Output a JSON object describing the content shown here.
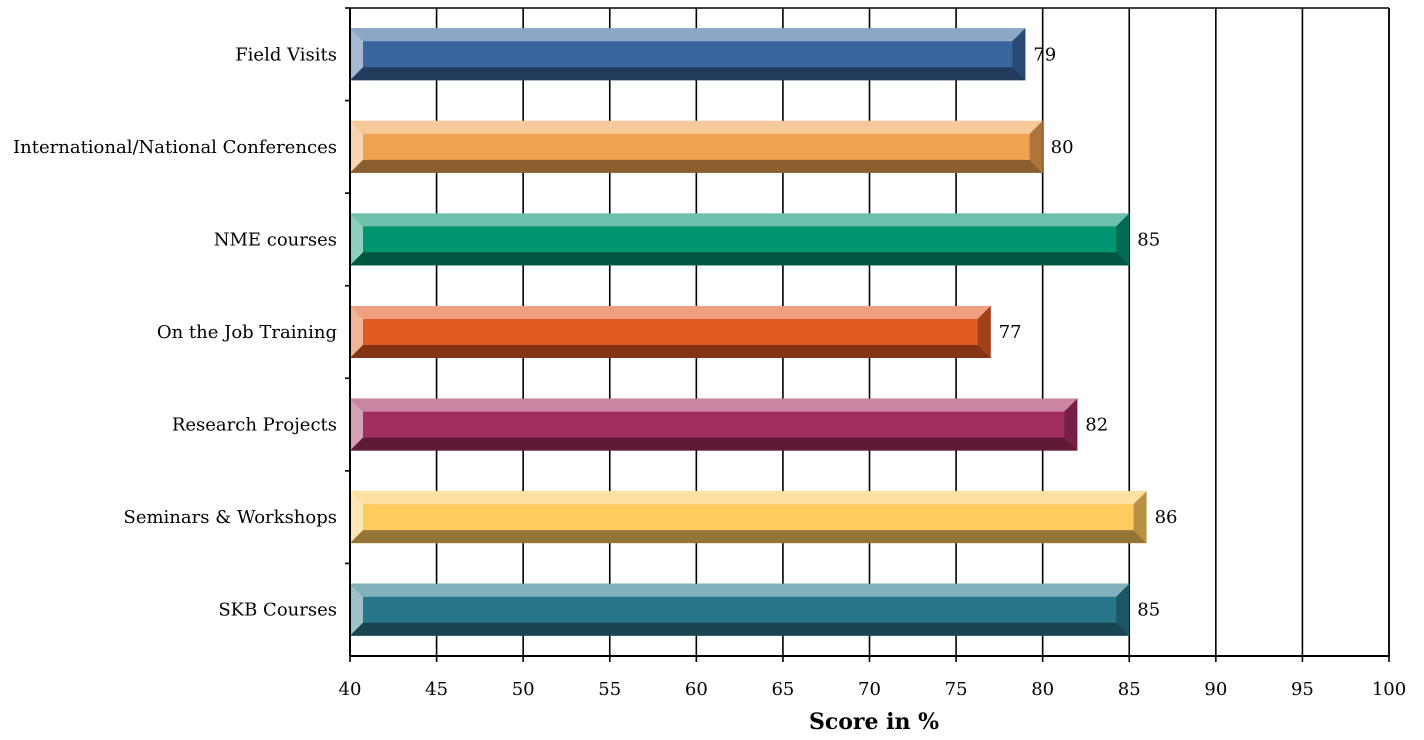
{
  "chart_data": {
    "type": "bar",
    "orientation": "horizontal",
    "categories": [
      "Field Visits",
      "International/National Conferences",
      "NME courses",
      "On the Job Training",
      "Research Projects",
      "Seminars & Workshops",
      "SKB Courses"
    ],
    "values": [
      79,
      80,
      85,
      77,
      82,
      86,
      85
    ],
    "value_labels": [
      "79",
      "80",
      "85",
      "77",
      "82",
      "86",
      "85"
    ],
    "xlabel": "Score in %",
    "xlim": [
      40,
      100
    ],
    "xticks": [
      40,
      45,
      50,
      55,
      60,
      65,
      70,
      75,
      80,
      85,
      90,
      95,
      100
    ],
    "xtick_labels": [
      "40",
      "45",
      "50",
      "55",
      "60",
      "65",
      "70",
      "75",
      "80",
      "85",
      "90",
      "95",
      "100"
    ],
    "grid": "vertical",
    "legend": "none",
    "bar_style": "3d-bevel",
    "colors": [
      "#3A66A0",
      "#F0A253",
      "#019571",
      "#E05A22",
      "#A22D5F",
      "#FECB5F",
      "#277689"
    ]
  }
}
